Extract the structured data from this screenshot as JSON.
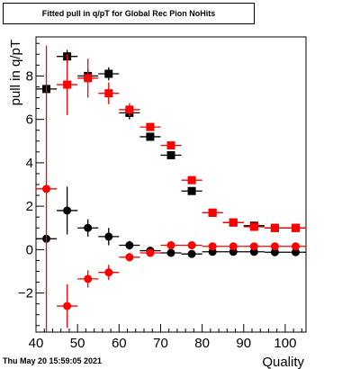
{
  "chart_data": {
    "type": "scatter",
    "title": "Fitted pull in q/pT for Global Rec Pion NoHits",
    "xlabel": "Quality",
    "ylabel": "pull in q/pT",
    "xlim": [
      40,
      105
    ],
    "ylim": [
      -3.8,
      9.8
    ],
    "x_ticks": [
      40,
      50,
      60,
      70,
      80,
      90,
      100
    ],
    "y_ticks": [
      -2,
      0,
      2,
      4,
      6,
      8
    ],
    "grid": false,
    "timestamp": "Thu May 20 15:59:05 2021",
    "series": [
      {
        "marker": "square",
        "color": "#000000",
        "points": [
          {
            "x": 42.5,
            "y": 7.4
          },
          {
            "x": 47.5,
            "y": 8.9,
            "yerr": 0.3
          },
          {
            "x": 52.5,
            "y": 8.0,
            "yerr": 0.3
          },
          {
            "x": 57.5,
            "y": 8.1,
            "yerr": 0.3
          },
          {
            "x": 62.5,
            "y": 6.3,
            "yerr": 0.3
          },
          {
            "x": 67.5,
            "y": 5.2
          },
          {
            "x": 72.5,
            "y": 4.35
          },
          {
            "x": 77.5,
            "y": 2.7
          },
          {
            "x": 82.5,
            "y": 1.7
          },
          {
            "x": 87.5,
            "y": 1.25
          },
          {
            "x": 92.5,
            "y": 1.1
          },
          {
            "x": 97.5,
            "y": 1.0
          },
          {
            "x": 102.5,
            "y": 1.0
          }
        ]
      },
      {
        "marker": "square",
        "color": "#ff0000",
        "points": [
          {
            "x": 47.5,
            "y": 7.6,
            "yerr": 1.4
          },
          {
            "x": 52.5,
            "y": 7.9,
            "yerr": 0.9
          },
          {
            "x": 57.5,
            "y": 7.2,
            "yerr": 0.5
          },
          {
            "x": 62.5,
            "y": 6.45,
            "yerr": 0.3
          },
          {
            "x": 67.5,
            "y": 5.65
          },
          {
            "x": 72.5,
            "y": 4.8
          },
          {
            "x": 77.5,
            "y": 3.2
          },
          {
            "x": 82.5,
            "y": 1.7
          },
          {
            "x": 87.5,
            "y": 1.25
          },
          {
            "x": 92.5,
            "y": 1.05
          },
          {
            "x": 97.5,
            "y": 1.0
          },
          {
            "x": 102.5,
            "y": 1.0
          }
        ]
      },
      {
        "marker": "circle",
        "color": "#000000",
        "points": [
          {
            "x": 42.5,
            "y": 0.5
          },
          {
            "x": 47.5,
            "y": 1.8,
            "yerr": 1.1
          },
          {
            "x": 52.5,
            "y": 1.0,
            "yerr": 0.4
          },
          {
            "x": 57.5,
            "y": 0.6,
            "yerr": 0.4
          },
          {
            "x": 62.5,
            "y": 0.2,
            "yerr": 0.2
          },
          {
            "x": 67.5,
            "y": -0.05
          },
          {
            "x": 72.5,
            "y": -0.15
          },
          {
            "x": 77.5,
            "y": -0.2
          },
          {
            "x": 82.5,
            "y": -0.1
          },
          {
            "x": 87.5,
            "y": -0.1
          },
          {
            "x": 92.5,
            "y": -0.1
          },
          {
            "x": 97.5,
            "y": -0.12
          },
          {
            "x": 102.5,
            "y": -0.12
          }
        ]
      },
      {
        "marker": "circle",
        "color": "#ff0000",
        "points": [
          {
            "x": 42.5,
            "y": 2.8,
            "yerr": 6.6
          },
          {
            "x": 47.5,
            "y": -2.6,
            "yerr": 1.0
          },
          {
            "x": 52.5,
            "y": -1.35,
            "yerr": 0.4
          },
          {
            "x": 57.5,
            "y": -1.05,
            "yerr": 0.35
          },
          {
            "x": 62.5,
            "y": -0.35,
            "yerr": 0.2
          },
          {
            "x": 67.5,
            "y": -0.15
          },
          {
            "x": 72.5,
            "y": 0.2
          },
          {
            "x": 77.5,
            "y": 0.2
          },
          {
            "x": 82.5,
            "y": 0.15
          },
          {
            "x": 87.5,
            "y": 0.15
          },
          {
            "x": 92.5,
            "y": 0.15
          },
          {
            "x": 97.5,
            "y": 0.15
          },
          {
            "x": 102.5,
            "y": 0.15
          }
        ]
      }
    ]
  }
}
